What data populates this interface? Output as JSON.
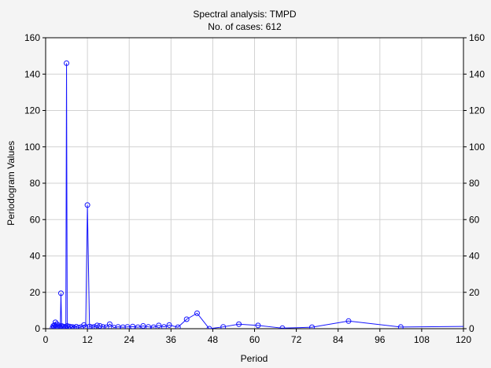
{
  "chart_data": {
    "type": "line",
    "title": "Spectral analysis: TMPD",
    "subtitle": "No. of cases: 612",
    "xlabel": "Period",
    "ylabel": "Periodogram Values",
    "xlim": [
      0,
      120
    ],
    "ylim": [
      0,
      160
    ],
    "x_ticks": [
      0,
      12,
      24,
      36,
      48,
      60,
      72,
      84,
      96,
      108,
      120
    ],
    "y_ticks": [
      0,
      20,
      40,
      60,
      80,
      100,
      120,
      140,
      160
    ],
    "grid": true,
    "right_axis": true,
    "colors": {
      "series": "#1515ff",
      "grid": "#d2d2d2",
      "plot_bg": "#ffffff",
      "page_bg": "#f4f4f4"
    },
    "series": [
      {
        "marker": "circle",
        "points": [
          [
            2.0,
            0.5
          ],
          [
            2.2,
            1.5
          ],
          [
            2.4,
            0.8
          ],
          [
            2.6,
            2.0
          ],
          [
            2.8,
            3.5
          ],
          [
            3.0,
            1.0
          ],
          [
            3.2,
            2.5
          ],
          [
            3.4,
            1.2
          ],
          [
            3.6,
            0.6
          ],
          [
            3.8,
            1.8
          ],
          [
            4.0,
            1.0
          ],
          [
            4.2,
            0.7
          ],
          [
            4.4,
            19.5
          ],
          [
            4.6,
            1.5
          ],
          [
            4.9,
            0.8
          ],
          [
            5.2,
            1.2
          ],
          [
            5.5,
            0.6
          ],
          [
            5.8,
            1.0
          ],
          [
            6.0,
            146.0
          ],
          [
            6.2,
            1.5
          ],
          [
            6.5,
            0.8
          ],
          [
            6.9,
            1.2
          ],
          [
            7.3,
            0.6
          ],
          [
            7.7,
            1.0
          ],
          [
            8.2,
            0.5
          ],
          [
            8.8,
            1.1
          ],
          [
            9.5,
            0.6
          ],
          [
            10.2,
            0.9
          ],
          [
            11.0,
            2.0
          ],
          [
            11.5,
            1.0
          ],
          [
            12.0,
            68.0
          ],
          [
            12.6,
            1.2
          ],
          [
            13.3,
            0.8
          ],
          [
            14.0,
            1.0
          ],
          [
            14.8,
            1.8
          ],
          [
            15.6,
            1.5
          ],
          [
            16.5,
            1.0
          ],
          [
            17.4,
            0.8
          ],
          [
            18.4,
            2.5
          ],
          [
            19.6,
            0.6
          ],
          [
            20.8,
            1.0
          ],
          [
            22.2,
            0.8
          ],
          [
            23.5,
            1.0
          ],
          [
            25.0,
            1.2
          ],
          [
            26.5,
            0.8
          ],
          [
            28.0,
            1.5
          ],
          [
            29.5,
            1.0
          ],
          [
            31.0,
            0.8
          ],
          [
            32.5,
            1.8
          ],
          [
            34.0,
            1.0
          ],
          [
            35.5,
            2.0
          ],
          [
            38.0,
            0.8
          ],
          [
            40.5,
            5.2
          ],
          [
            43.5,
            8.5
          ],
          [
            47.0,
            0.0
          ],
          [
            51.0,
            1.0
          ],
          [
            55.5,
            2.5
          ],
          [
            61.0,
            1.8
          ],
          [
            68.0,
            0.3
          ],
          [
            76.5,
            0.8
          ],
          [
            87.0,
            4.2
          ],
          [
            102.0,
            0.9
          ],
          [
            122.0,
            1.3
          ]
        ]
      }
    ]
  }
}
